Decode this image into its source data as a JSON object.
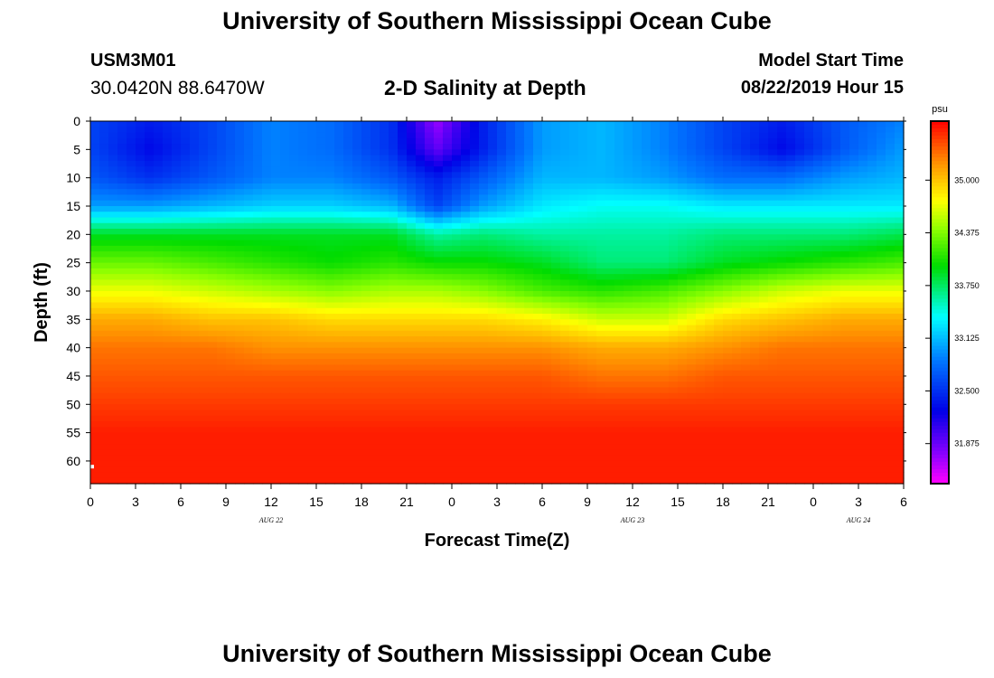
{
  "header": {
    "title_top": "University of Southern Mississippi Ocean Cube",
    "title_bottom": "University of Southern Mississippi Ocean Cube",
    "station_id": "USM3M01",
    "station_coords": "30.0420N 88.6470W",
    "plot_title": "2-D Salinity at Depth",
    "model_start_label": "Model Start Time",
    "model_start_value": "08/22/2019 Hour 15"
  },
  "chart_data": {
    "type": "heatmap",
    "title": "2-D Salinity at Depth",
    "xlabel": "Forecast Time(Z)",
    "ylabel": "Depth (ft)",
    "x_ticks": [
      "0",
      "3",
      "6",
      "9",
      "12",
      "15",
      "18",
      "21",
      "0",
      "3",
      "6",
      "9",
      "12",
      "15",
      "18",
      "21",
      "0",
      "3",
      "6"
    ],
    "x_date_labels": [
      {
        "label": "AUG 22",
        "tick_index": 4
      },
      {
        "label": "AUG 23",
        "tick_index": 12
      },
      {
        "label": "AUG 24",
        "tick_index": 17
      }
    ],
    "xlim_hours": [
      0,
      54
    ],
    "y_ticks": [
      0,
      5,
      10,
      15,
      20,
      25,
      30,
      35,
      40,
      45,
      50,
      55,
      60
    ],
    "ylim_ft": [
      0,
      64
    ],
    "colorbar": {
      "unit": "psu",
      "range": [
        31.4,
        35.7
      ],
      "tick_values": [
        35.0,
        34.375,
        33.75,
        33.125,
        32.5,
        31.875
      ],
      "tick_labels": [
        "35.000",
        "34.375",
        "33.750",
        "33.125",
        "32.500",
        "31.875"
      ]
    },
    "salinity_field": {
      "description": "Salinity (psu) estimated from colors; rows by depth (ft), columns by forecast hour",
      "hours": [
        0,
        4,
        8,
        12,
        16,
        20,
        23,
        26,
        30,
        34,
        38,
        42,
        46,
        50,
        54
      ],
      "depths": [
        0,
        5,
        10,
        15,
        20,
        25,
        30,
        35,
        40,
        45,
        50,
        55,
        60,
        64
      ],
      "values": [
        [
          32.6,
          32.4,
          32.6,
          32.9,
          32.8,
          32.5,
          31.7,
          32.4,
          33.0,
          33.1,
          32.9,
          32.6,
          32.4,
          32.7,
          32.9
        ],
        [
          32.6,
          32.3,
          32.6,
          32.9,
          32.8,
          32.5,
          31.9,
          32.4,
          33.0,
          33.1,
          32.9,
          32.6,
          32.3,
          32.7,
          33.0
        ],
        [
          32.7,
          32.5,
          32.7,
          32.9,
          32.9,
          32.7,
          32.4,
          32.7,
          33.1,
          33.1,
          33.0,
          32.8,
          32.8,
          33.0,
          33.1
        ],
        [
          33.0,
          33.0,
          33.1,
          33.2,
          33.2,
          33.1,
          32.6,
          33.0,
          33.3,
          33.4,
          33.4,
          33.3,
          33.3,
          33.3,
          33.3
        ],
        [
          33.9,
          33.9,
          33.9,
          33.9,
          33.9,
          33.9,
          33.6,
          33.7,
          33.6,
          33.6,
          33.6,
          33.7,
          33.7,
          33.7,
          33.8
        ],
        [
          34.3,
          34.3,
          34.2,
          34.1,
          34.0,
          34.1,
          34.0,
          34.0,
          33.9,
          33.7,
          33.7,
          33.9,
          34.0,
          34.1,
          34.2
        ],
        [
          34.7,
          34.7,
          34.6,
          34.5,
          34.4,
          34.5,
          34.5,
          34.4,
          34.2,
          34.1,
          34.2,
          34.4,
          34.6,
          34.7,
          34.7
        ],
        [
          35.1,
          35.1,
          35.0,
          35.0,
          34.9,
          34.9,
          34.9,
          34.9,
          34.8,
          34.6,
          34.6,
          34.9,
          35.0,
          35.1,
          35.1
        ],
        [
          35.3,
          35.3,
          35.3,
          35.2,
          35.2,
          35.2,
          35.2,
          35.2,
          35.2,
          35.1,
          35.1,
          35.2,
          35.3,
          35.3,
          35.3
        ],
        [
          35.4,
          35.4,
          35.4,
          35.4,
          35.4,
          35.4,
          35.4,
          35.4,
          35.4,
          35.3,
          35.3,
          35.4,
          35.4,
          35.4,
          35.4
        ],
        [
          35.5,
          35.5,
          35.5,
          35.5,
          35.5,
          35.5,
          35.5,
          35.5,
          35.5,
          35.5,
          35.5,
          35.5,
          35.5,
          35.5,
          35.5
        ],
        [
          35.6,
          35.6,
          35.6,
          35.6,
          35.6,
          35.6,
          35.6,
          35.6,
          35.6,
          35.6,
          35.6,
          35.6,
          35.6,
          35.6,
          35.6
        ],
        [
          35.6,
          35.6,
          35.6,
          35.6,
          35.6,
          35.6,
          35.6,
          35.6,
          35.6,
          35.6,
          35.6,
          35.6,
          35.6,
          35.6,
          35.6
        ],
        [
          35.6,
          35.6,
          35.6,
          35.6,
          35.6,
          35.6,
          35.6,
          35.6,
          35.6,
          35.6,
          35.6,
          35.6,
          35.6,
          35.6,
          35.6
        ]
      ]
    }
  }
}
